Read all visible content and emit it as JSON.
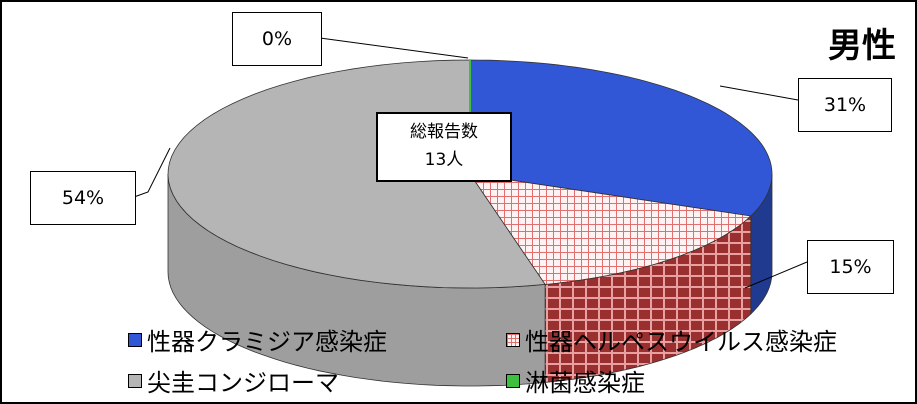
{
  "chart_data": {
    "type": "pie",
    "title": "男性",
    "center_label": {
      "line1": "総報告数",
      "line2": "13人"
    },
    "categories": [
      "性器クラミジア感染症",
      "性器ヘルペスウイルス感染症",
      "尖圭コンジローマ",
      "淋菌感染症"
    ],
    "values": [
      31,
      15,
      54,
      0
    ],
    "value_labels": [
      "31%",
      "15%",
      "54%",
      "0%"
    ],
    "colors": [
      "#3157D6",
      "#F2B8B8",
      "#B5B5B5",
      "#3FBF3F"
    ],
    "legend_placement": "bottom",
    "is_3d": true
  }
}
